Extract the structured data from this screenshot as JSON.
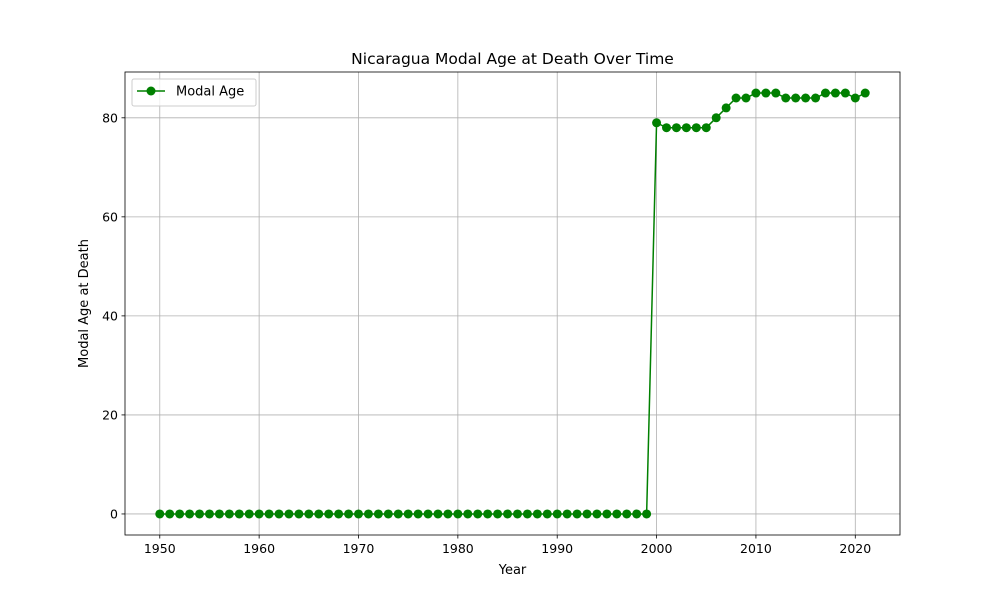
{
  "chart_data": {
    "type": "line",
    "title": "Nicaragua Modal Age at Death Over Time",
    "xlabel": "Year",
    "ylabel": "Modal Age at Death",
    "xlim": [
      1946.5,
      2024.5
    ],
    "ylim": [
      -4.25,
      89.25
    ],
    "xticks": [
      1950,
      1960,
      1970,
      1980,
      1990,
      2000,
      2010,
      2020
    ],
    "yticks": [
      0,
      20,
      40,
      60,
      80
    ],
    "grid": true,
    "legend_position": "top-left",
    "series": [
      {
        "name": "Modal Age",
        "color": "#008000",
        "marker": "circle",
        "x": [
          1950,
          1951,
          1952,
          1953,
          1954,
          1955,
          1956,
          1957,
          1958,
          1959,
          1960,
          1961,
          1962,
          1963,
          1964,
          1965,
          1966,
          1967,
          1968,
          1969,
          1970,
          1971,
          1972,
          1973,
          1974,
          1975,
          1976,
          1977,
          1978,
          1979,
          1980,
          1981,
          1982,
          1983,
          1984,
          1985,
          1986,
          1987,
          1988,
          1989,
          1990,
          1991,
          1992,
          1993,
          1994,
          1995,
          1996,
          1997,
          1998,
          1999,
          2000,
          2001,
          2002,
          2003,
          2004,
          2005,
          2006,
          2007,
          2008,
          2009,
          2010,
          2011,
          2012,
          2013,
          2014,
          2015,
          2016,
          2017,
          2018,
          2019,
          2020,
          2021
        ],
        "y": [
          0,
          0,
          0,
          0,
          0,
          0,
          0,
          0,
          0,
          0,
          0,
          0,
          0,
          0,
          0,
          0,
          0,
          0,
          0,
          0,
          0,
          0,
          0,
          0,
          0,
          0,
          0,
          0,
          0,
          0,
          0,
          0,
          0,
          0,
          0,
          0,
          0,
          0,
          0,
          0,
          0,
          0,
          0,
          0,
          0,
          0,
          0,
          0,
          0,
          0,
          79,
          78,
          78,
          78,
          78,
          78,
          80,
          82,
          84,
          84,
          85,
          85,
          85,
          84,
          84,
          84,
          84,
          85,
          85,
          85,
          84,
          85
        ]
      }
    ]
  }
}
